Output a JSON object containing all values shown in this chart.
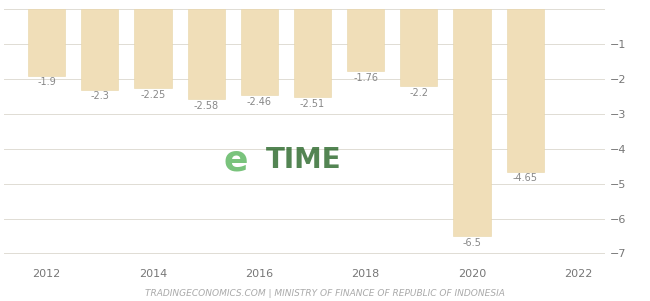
{
  "years": [
    2012,
    2013,
    2014,
    2015,
    2016,
    2017,
    2018,
    2019,
    2020,
    2021
  ],
  "values": [
    -1.9,
    -2.3,
    -2.25,
    -2.58,
    -2.46,
    -2.51,
    -1.76,
    -2.2,
    -6.5,
    -4.65
  ],
  "labels": [
    "-1.9",
    "-2.3",
    "-2.25",
    "-2.58",
    "-2.46",
    "-2.51",
    "-1.76",
    "-2.2",
    "-6.5",
    "-4.65"
  ],
  "bar_color": "#f0deb8",
  "bar_edge_color": "#e8d5a8",
  "background_color": "#ffffff",
  "grid_color": "#e0dcd4",
  "text_color": "#777777",
  "label_color": "#888888",
  "yticks": [
    -1,
    -2,
    -3,
    -4,
    -5,
    -6,
    -7
  ],
  "xticks": [
    2012,
    2014,
    2016,
    2018,
    2020,
    2022
  ],
  "ylim": [
    -7.3,
    0.15
  ],
  "xlim": [
    2011.2,
    2022.5
  ],
  "footer": "TRADINGECONOMICS.COM | MINISTRY OF FINANCE OF REPUBLIC OF INDONESIA",
  "label_fontsize": 7,
  "tick_fontsize": 8,
  "footer_fontsize": 6.5,
  "bar_width": 0.7
}
